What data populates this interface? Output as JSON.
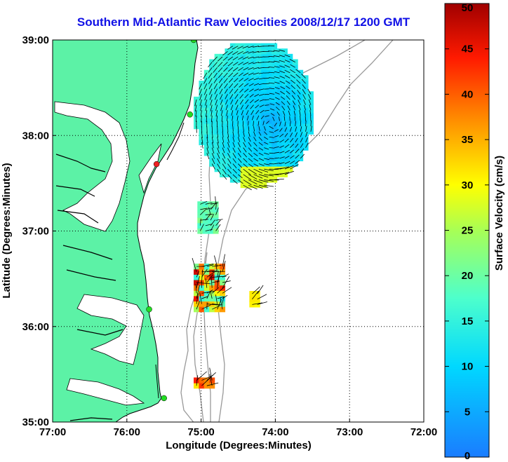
{
  "title": "Southern Mid-Atlantic Raw Velocities 2008/12/17 1200 GMT",
  "map": {
    "xlabel": "Longitude (Degrees:Minutes)",
    "ylabel": "Latitude (Degrees:Minutes)",
    "lon_range": [
      -77,
      -72
    ],
    "lat_range": [
      35,
      39
    ],
    "xticks": [
      {
        "value": -77,
        "label": "77:00"
      },
      {
        "value": -76,
        "label": "76:00"
      },
      {
        "value": -75,
        "label": "75:00"
      },
      {
        "value": -74,
        "label": "74:00"
      },
      {
        "value": -73,
        "label": "73:00"
      },
      {
        "value": -72,
        "label": "72:00"
      }
    ],
    "yticks": [
      {
        "value": 39,
        "label": "39:00"
      },
      {
        "value": 38,
        "label": "38:00"
      },
      {
        "value": 37,
        "label": "37:00"
      },
      {
        "value": 36,
        "label": "36:00"
      },
      {
        "value": 35,
        "label": "35:00"
      }
    ],
    "grid": true,
    "land_color": "#5cf2a6",
    "coast_color": "#000000",
    "isobath_color": "#999999",
    "stations": [
      {
        "lon": -75.1,
        "lat": 39.0,
        "color": "#22dd22"
      },
      {
        "lon": -75.15,
        "lat": 38.22,
        "color": "#22dd22"
      },
      {
        "lon": -75.6,
        "lat": 37.7,
        "color": "#ee2222"
      },
      {
        "lon": -75.7,
        "lat": 36.18,
        "color": "#22dd22"
      },
      {
        "lon": -75.5,
        "lat": 35.25,
        "color": "#22dd22"
      }
    ]
  },
  "colorbar": {
    "label": "Surface Velocity (cm/s)",
    "min": 0,
    "max": 50,
    "ticks": [
      "0",
      "5",
      "10",
      "15",
      "20",
      "25",
      "30",
      "35",
      "40",
      "45",
      "50"
    ],
    "colormap": "jet"
  },
  "chart_data": {
    "type": "heatmap",
    "title": "Southern Mid-Atlantic Raw Velocities 2008/12/17 1200 GMT",
    "xlabel": "Longitude (Degrees:Minutes)",
    "ylabel": "Latitude (Degrees:Minutes)",
    "zlabel": "Surface Velocity (cm/s)",
    "zlim": [
      0,
      50
    ],
    "regions": [
      {
        "name_hint": "large",
        "lon_range": [
          -75.1,
          -73.55
        ],
        "lat_range": [
          37.45,
          38.95
        ],
        "speed_range": [
          4,
          28
        ],
        "center_speed": [
          -74.1,
          38.1,
          5
        ]
      },
      {
        "lon_range": [
          -75.05,
          -74.8
        ],
        "lat_range": [
          36.97,
          37.25
        ],
        "speed_range": [
          17,
          22
        ]
      },
      {
        "lon_range": [
          -75.1,
          -74.75
        ],
        "lat_range": [
          36.15,
          36.6
        ],
        "speed_range": [
          12,
          48
        ]
      },
      {
        "lon_range": [
          -74.35,
          -74.25
        ],
        "lat_range": [
          36.2,
          36.35
        ],
        "speed_range": [
          28,
          32
        ]
      },
      {
        "lon_range": [
          -75.1,
          -74.85
        ],
        "lat_range": [
          35.35,
          35.45
        ],
        "speed_range": [
          30,
          45
        ]
      }
    ]
  }
}
